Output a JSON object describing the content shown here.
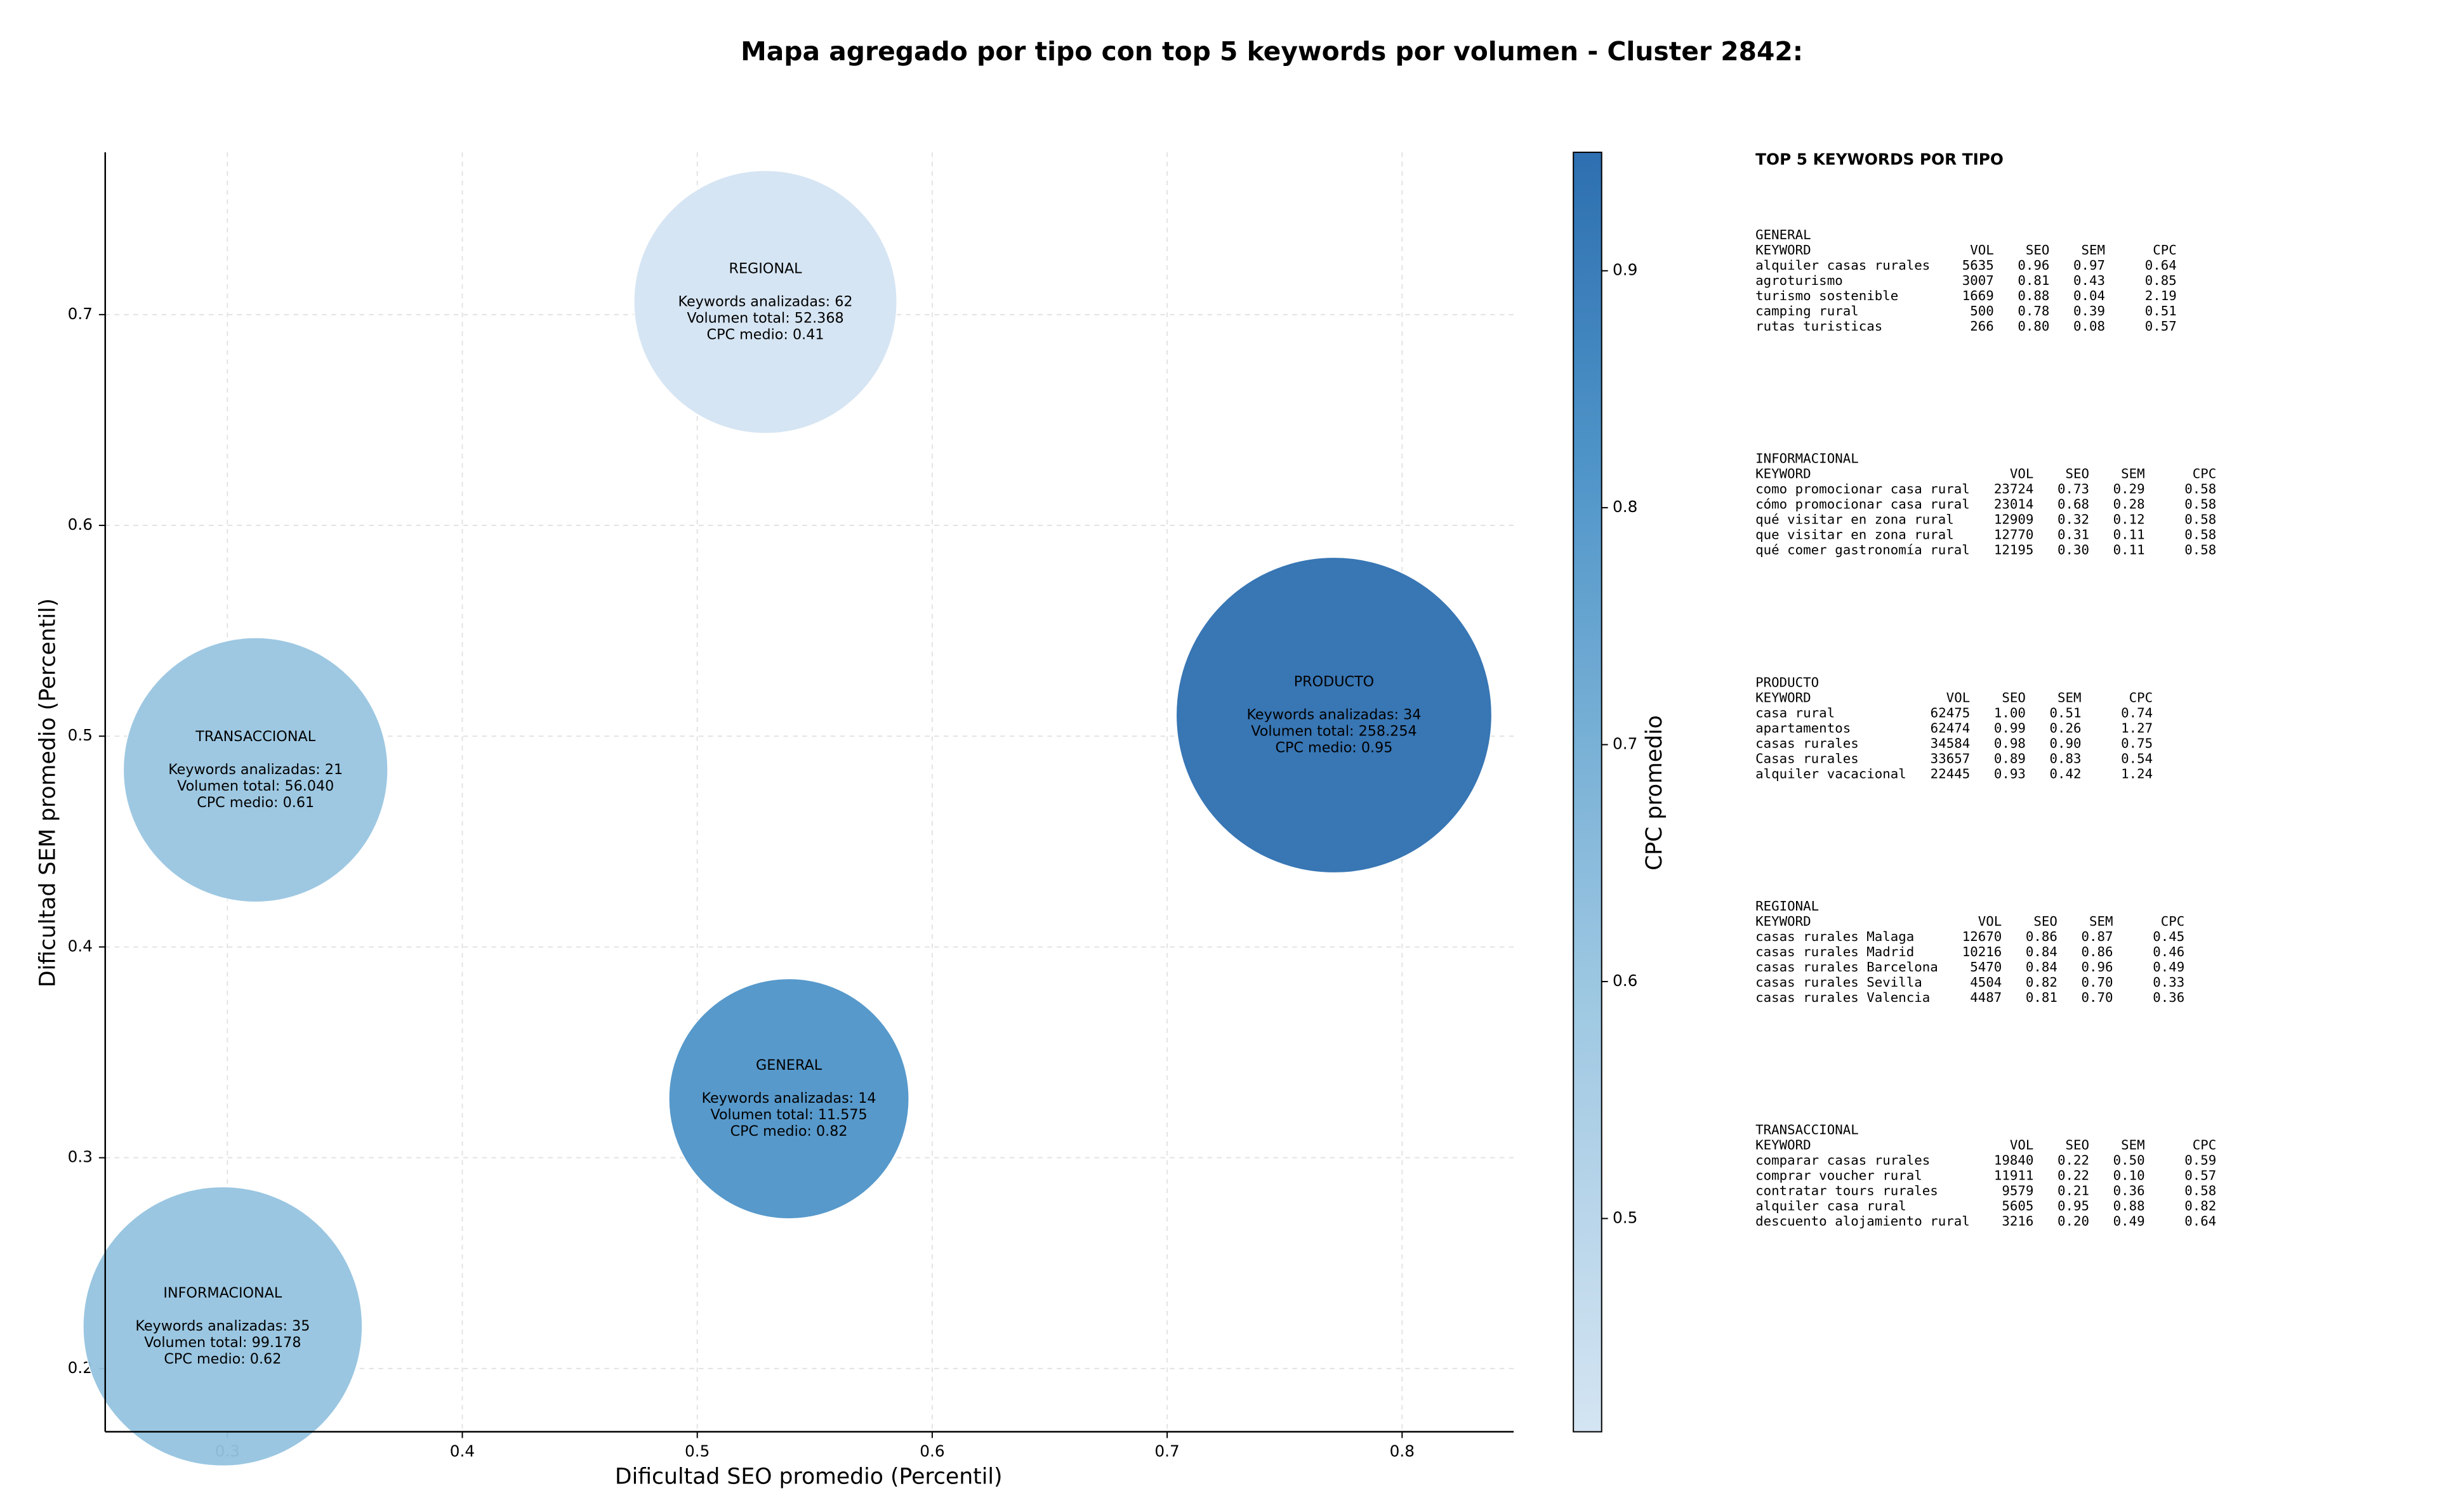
{
  "chart_data": {
    "type": "scatter",
    "title": "Mapa agregado por tipo con top 5 keywords por volumen - Cluster 2842:",
    "xlabel": "Dificultad SEO promedio (Percentil)",
    "ylabel": "Dificultad SEM promedio (Percentil)",
    "xlim": [
      0.248,
      0.8475
    ],
    "ylim": [
      0.17,
      0.777
    ],
    "xticks": [
      0.3,
      0.4,
      0.5,
      0.6,
      0.7,
      0.8
    ],
    "yticks": [
      0.2,
      0.3,
      0.4,
      0.5,
      0.6,
      0.7
    ],
    "grid": true,
    "colormap": "Blues",
    "colorbar": {
      "label": "CPC promedio",
      "lim": [
        0.41,
        0.95
      ],
      "ticks": [
        0.5,
        0.6,
        0.7,
        0.8,
        0.9
      ]
    },
    "series": [
      {
        "name": "REGIONAL",
        "x": 0.529,
        "y": 0.706,
        "volume": 52368,
        "cpc": 0.41,
        "annotation": [
          "Keywords analizadas: 62",
          "Volumen total: 52.368",
          "CPC medio: 0.41"
        ]
      },
      {
        "name": "PRODUCTO",
        "x": 0.771,
        "y": 0.51,
        "volume": 258254,
        "cpc": 0.95,
        "annotation": [
          "Keywords analizadas: 34",
          "Volumen total: 258.254",
          "CPC medio: 0.95"
        ]
      },
      {
        "name": "TRANSACCIONAL",
        "x": 0.312,
        "y": 0.484,
        "volume": 56040,
        "cpc": 0.61,
        "annotation": [
          "Keywords analizadas: 21",
          "Volumen total: 56.040",
          "CPC medio: 0.61"
        ]
      },
      {
        "name": "GENERAL",
        "x": 0.539,
        "y": 0.328,
        "volume": 11575,
        "cpc": 0.82,
        "annotation": [
          "Keywords analizadas: 14",
          "Volumen total: 11.575",
          "CPC medio: 0.82"
        ]
      },
      {
        "name": "INFORMACIONAL",
        "x": 0.298,
        "y": 0.22,
        "volume": 99178,
        "cpc": 0.62,
        "annotation": [
          "Keywords analizadas: 35",
          "Volumen total: 99.178",
          "CPC medio: 0.62"
        ]
      }
    ]
  },
  "side_panel": {
    "title": "TOP 5 KEYWORDS POR TIPO",
    "groups": [
      {
        "name": "GENERAL",
        "header": [
          "KEYWORD",
          "VOL",
          "SEO",
          "SEM",
          "CPC"
        ],
        "rows": [
          [
            "alquiler casas rurales",
            "5635",
            "0.96",
            "0.97",
            "0.64"
          ],
          [
            "agroturismo",
            "3007",
            "0.81",
            "0.43",
            "0.85"
          ],
          [
            "turismo sostenible",
            "1669",
            "0.88",
            "0.04",
            "2.19"
          ],
          [
            "camping rural",
            "500",
            "0.78",
            "0.39",
            "0.51"
          ],
          [
            "rutas turisticas",
            "266",
            "0.80",
            "0.08",
            "0.57"
          ]
        ]
      },
      {
        "name": "INFORMACIONAL",
        "header": [
          "KEYWORD",
          "VOL",
          "SEO",
          "SEM",
          "CPC"
        ],
        "rows": [
          [
            "como promocionar casa rural",
            "23724",
            "0.73",
            "0.29",
            "0.58"
          ],
          [
            "cómo promocionar casa rural",
            "23014",
            "0.68",
            "0.28",
            "0.58"
          ],
          [
            "qué visitar en zona rural",
            "12909",
            "0.32",
            "0.12",
            "0.58"
          ],
          [
            "que visitar en zona rural",
            "12770",
            "0.31",
            "0.11",
            "0.58"
          ],
          [
            "qué comer gastronomía rural",
            "12195",
            "0.30",
            "0.11",
            "0.58"
          ]
        ]
      },
      {
        "name": "PRODUCTO",
        "header": [
          "KEYWORD",
          "VOL",
          "SEO",
          "SEM",
          "CPC"
        ],
        "rows": [
          [
            "casa rural",
            "62475",
            "1.00",
            "0.51",
            "0.74"
          ],
          [
            "apartamentos",
            "62474",
            "0.99",
            "0.26",
            "1.27"
          ],
          [
            "casas rurales",
            "34584",
            "0.98",
            "0.90",
            "0.75"
          ],
          [
            "Casas rurales",
            "33657",
            "0.89",
            "0.83",
            "0.54"
          ],
          [
            "alquiler vacacional",
            "22445",
            "0.93",
            "0.42",
            "1.24"
          ]
        ]
      },
      {
        "name": "REGIONAL",
        "header": [
          "KEYWORD",
          "VOL",
          "SEO",
          "SEM",
          "CPC"
        ],
        "rows": [
          [
            "casas rurales Malaga",
            "12670",
            "0.86",
            "0.87",
            "0.45"
          ],
          [
            "casas rurales Madrid",
            "10216",
            "0.84",
            "0.86",
            "0.46"
          ],
          [
            "casas rurales Barcelona",
            "5470",
            "0.84",
            "0.96",
            "0.49"
          ],
          [
            "casas rurales Sevilla",
            "4504",
            "0.82",
            "0.70",
            "0.33"
          ],
          [
            "casas rurales Valencia",
            "4487",
            "0.81",
            "0.70",
            "0.36"
          ]
        ]
      },
      {
        "name": "TRANSACCIONAL",
        "header": [
          "KEYWORD",
          "VOL",
          "SEO",
          "SEM",
          "CPC"
        ],
        "rows": [
          [
            "comparar casas rurales",
            "19840",
            "0.22",
            "0.50",
            "0.59"
          ],
          [
            "comprar voucher rural",
            "11911",
            "0.22",
            "0.10",
            "0.57"
          ],
          [
            "contratar tours rurales",
            "9579",
            "0.21",
            "0.36",
            "0.58"
          ],
          [
            "alquiler casa rural",
            "5605",
            "0.95",
            "0.88",
            "0.82"
          ],
          [
            "descuento alojamiento rural",
            "3216",
            "0.20",
            "0.49",
            "0.64"
          ]
        ]
      }
    ]
  }
}
